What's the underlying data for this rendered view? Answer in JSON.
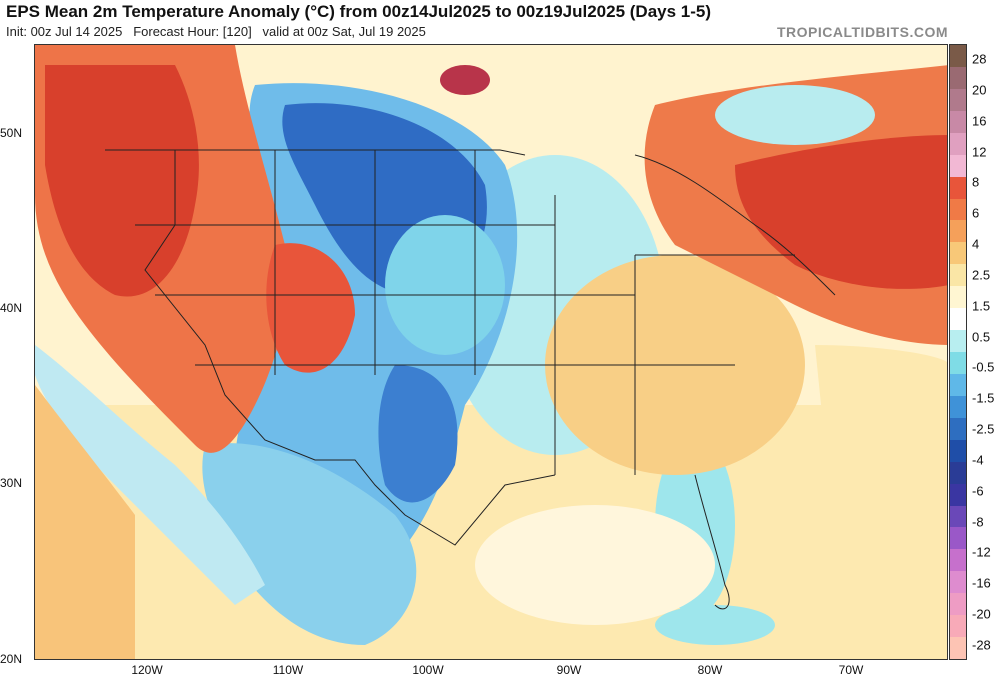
{
  "header": {
    "title": "EPS Mean 2m Temperature Anomaly (°C) from 00z14Jul2025 to 00z19Jul2025 (Days 1-5)",
    "subtitle": "Init: 00z Jul 14 2025   Forecast Hour: [120]   valid at 00z Sat, Jul 19 2025",
    "brand": "TROPICALTIDBITS.COM"
  },
  "axes": {
    "lat_labels": [
      "50N",
      "40N",
      "30N",
      "20N"
    ],
    "lon_labels": [
      "120W",
      "110W",
      "100W",
      "90W",
      "80W",
      "70W"
    ]
  },
  "colorbar": {
    "labels": [
      "28",
      "20",
      "16",
      "12",
      "8",
      "6",
      "4",
      "2.5",
      "1.5",
      "0.5",
      "-0.5",
      "-1.5",
      "-2.5",
      "-4",
      "-6",
      "-8",
      "-12",
      "-16",
      "-20",
      "-28"
    ],
    "colors": [
      "#7a5a48",
      "#9a6a72",
      "#b07a8c",
      "#c889a6",
      "#e0a0c0",
      "#f2b8d4",
      "#e8553a",
      "#f07a46",
      "#f5a05a",
      "#f8c878",
      "#fae6a6",
      "#fff6d2",
      "#ffffff",
      "#b8eef0",
      "#7fdce6",
      "#5fb8e8",
      "#3f92d8",
      "#2e6ec0",
      "#1f4ea8",
      "#2a3c96",
      "#3a36a2",
      "#6a48b8",
      "#9a58c8",
      "#c670cc",
      "#de8ccf",
      "#ee9cc4",
      "#f8aab8",
      "#fdc4b4"
    ]
  },
  "colors": {
    "warm_strong": "#d8402c",
    "warm": "#ee7a4a",
    "warm_light": "#f8c47a",
    "neutral": "#fff3cf",
    "cool_light": "#8fe0ea",
    "cool": "#4fa2e0",
    "cool_strong": "#2a62c0"
  }
}
